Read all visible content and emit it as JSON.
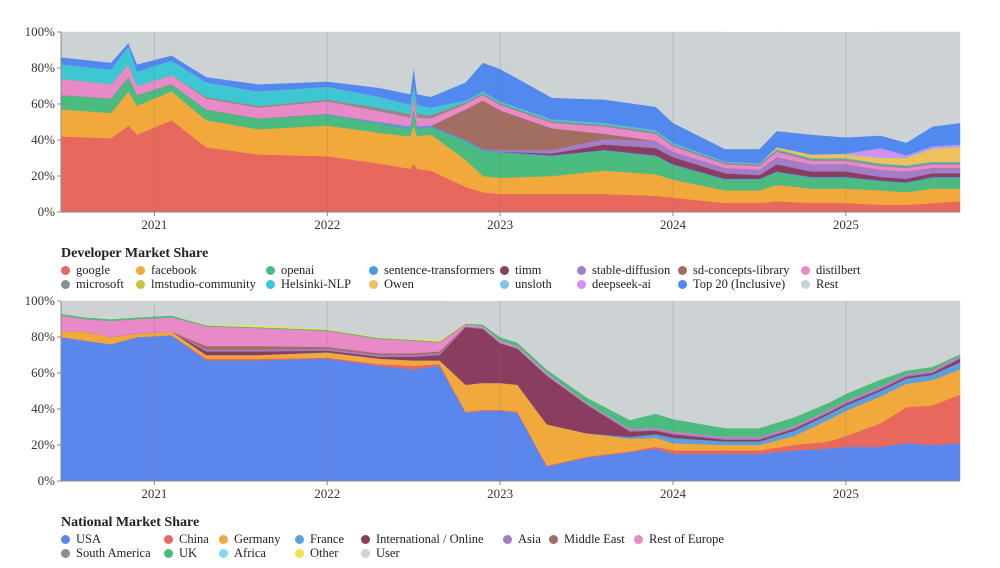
{
  "chart_data": [
    {
      "type": "area",
      "stacked": true,
      "title": "Developer Market Share",
      "xlabel": "",
      "ylabel": "",
      "xlim": [
        2020.46,
        2025.66
      ],
      "ylim": [
        0,
        100
      ],
      "y_ticks": [
        "0%",
        "20%",
        "40%",
        "60%",
        "80%",
        "100%"
      ],
      "y_tick_values": [
        0,
        20,
        40,
        60,
        80,
        100
      ],
      "x_ticks": [
        "2021",
        "2022",
        "2023",
        "2024",
        "2025"
      ],
      "x_tick_values": [
        2021,
        2022,
        2023,
        2024,
        2025
      ],
      "grid": true,
      "legend_position": "bottom-left",
      "x": [
        2020.46,
        2020.75,
        2020.85,
        2020.9,
        2021.1,
        2021.3,
        2021.6,
        2022.0,
        2022.3,
        2022.48,
        2022.5,
        2022.52,
        2022.6,
        2022.8,
        2022.9,
        2023.0,
        2023.3,
        2023.6,
        2023.9,
        2024.0,
        2024.3,
        2024.5,
        2024.6,
        2024.8,
        2025.0,
        2025.2,
        2025.35,
        2025.5,
        2025.66
      ],
      "series": [
        {
          "name": "google",
          "color": "#e8685e",
          "values": [
            42,
            41,
            48,
            43,
            51,
            36,
            32,
            31,
            27,
            24,
            27,
            24,
            23,
            14,
            11,
            10,
            10,
            10,
            9,
            8,
            5,
            5,
            6,
            5,
            5,
            4,
            4,
            5,
            6
          ]
        },
        {
          "name": "facebook",
          "color": "#f2a93b",
          "values": [
            15,
            14,
            19,
            16,
            16,
            15,
            14,
            17,
            17,
            18,
            21,
            18,
            20,
            15,
            9,
            9,
            10,
            13,
            12,
            10,
            7,
            7,
            9,
            8,
            8,
            8,
            7,
            8,
            7
          ]
        },
        {
          "name": "openai",
          "color": "#4cbb7f",
          "values": [
            8,
            8,
            8,
            6,
            4,
            6,
            6,
            6,
            5,
            4,
            8,
            4,
            4,
            10,
            14,
            14,
            11,
            11,
            10,
            8,
            6,
            6,
            7,
            6,
            6,
            5,
            5,
            6,
            6
          ]
        },
        {
          "name": "sentence-transformers",
          "color": "#4a9de0",
          "values": [
            0,
            0,
            0,
            0,
            0,
            0,
            0,
            0.5,
            1,
            1.5,
            1.5,
            1.5,
            1,
            1,
            1,
            0.5,
            0.5,
            0.5,
            0.5,
            0.5,
            0.5,
            0.5,
            0.5,
            0.5,
            0.5,
            0.5,
            0.5,
            0.5,
            0.5
          ]
        },
        {
          "name": "timm",
          "color": "#8b3d5f",
          "values": [
            0,
            0,
            0,
            0,
            0,
            0,
            0,
            0,
            0,
            0,
            0,
            0,
            0,
            0,
            0,
            0,
            1,
            3,
            4,
            4,
            3,
            2,
            4,
            3,
            3,
            2,
            2,
            2,
            2
          ]
        },
        {
          "name": "stable-diffusion",
          "color": "#a47dc8",
          "values": [
            0,
            0,
            0,
            0,
            0,
            0,
            0,
            0,
            0,
            0,
            0,
            0,
            0,
            0,
            0,
            1,
            2,
            3,
            4,
            3,
            3,
            3,
            4,
            4,
            4,
            4,
            4,
            3,
            3
          ]
        },
        {
          "name": "sd-concepts-library",
          "color": "#a36e62",
          "values": [
            0,
            0,
            0,
            0,
            0,
            0,
            0,
            0,
            0,
            0,
            0,
            0,
            0,
            17,
            27,
            22,
            12,
            3,
            0,
            0,
            0,
            0,
            0,
            0,
            0,
            0,
            0,
            0,
            0
          ]
        },
        {
          "name": "distilbert",
          "color": "#e98ac8",
          "values": [
            9,
            8,
            7,
            5,
            5,
            6,
            6,
            7,
            6,
            5,
            5,
            5,
            4,
            3,
            3,
            3,
            3,
            4,
            4,
            3,
            2,
            2,
            3,
            2,
            2,
            2,
            2,
            2,
            2
          ]
        },
        {
          "name": "microsoft",
          "color": "#8c8c8c",
          "values": [
            0,
            0,
            0,
            0,
            0,
            1,
            1,
            1,
            2,
            2,
            2,
            2,
            2,
            1,
            1,
            1,
            1,
            1,
            1,
            1,
            1,
            1,
            1,
            1,
            1,
            1,
            1,
            1,
            1
          ]
        },
        {
          "name": "lmstudio-community",
          "color": "#c6c440",
          "values": [
            0,
            0,
            0,
            0,
            0,
            0,
            0,
            0,
            0,
            0,
            0,
            0,
            0,
            0,
            0,
            0,
            0,
            0,
            0,
            0,
            0,
            0,
            0,
            0,
            0,
            0,
            0,
            0,
            0
          ]
        },
        {
          "name": "Helsinki-NLP",
          "color": "#3cc7d2",
          "values": [
            8,
            8,
            10,
            8,
            8,
            8,
            8,
            7,
            6,
            5,
            6,
            5,
            4,
            1,
            1,
            1,
            1,
            1,
            1,
            1,
            0.5,
            0.5,
            0.5,
            0.5,
            0.5,
            0.5,
            0.5,
            0.5,
            0.5
          ]
        },
        {
          "name": "Owen",
          "color": "#f0c05a",
          "values": [
            0,
            0,
            0,
            0,
            0,
            0,
            0,
            0,
            0,
            0,
            0,
            0,
            0,
            0,
            0,
            0,
            0,
            0,
            0,
            0,
            0,
            0,
            1,
            2,
            2,
            3,
            4,
            7,
            8
          ]
        },
        {
          "name": "unsloth",
          "color": "#7ec4ea",
          "values": [
            0,
            0,
            0,
            0,
            0,
            0,
            0,
            0,
            0,
            0,
            0,
            0,
            0,
            0,
            0,
            0,
            0,
            0,
            0,
            0,
            0,
            0,
            0,
            0,
            0.5,
            0.5,
            0.5,
            0.5,
            0.5
          ]
        },
        {
          "name": "deepseek-ai",
          "color": "#d48ef0",
          "values": [
            0,
            0,
            0,
            0,
            0,
            0,
            0,
            0,
            0,
            0,
            0,
            0,
            0,
            0,
            0,
            0,
            0,
            0,
            0,
            0,
            0,
            0,
            0,
            0,
            0,
            5,
            1,
            1,
            1
          ]
        },
        {
          "name": "Top 20 (Inclusive)",
          "color": "#5189ef",
          "values": [
            4,
            4,
            2,
            4,
            3,
            3,
            4,
            3,
            5,
            6,
            10,
            6,
            6,
            10,
            16,
            18,
            12,
            13,
            13,
            11,
            7,
            8,
            9,
            11,
            9,
            7,
            7,
            11,
            12
          ]
        },
        {
          "name": "Rest",
          "color": "#cdd2d4",
          "values": [
            14,
            17,
            6,
            18,
            13,
            25,
            29,
            27.5,
            31,
            34.5,
            19.5,
            34.5,
            36,
            28,
            17,
            20.5,
            36.5,
            38.5,
            41.5,
            50.5,
            65,
            64,
            55,
            56.5,
            58,
            57.5,
            61.5,
            52.5,
            50.5
          ]
        }
      ]
    },
    {
      "type": "area",
      "stacked": true,
      "title": "National Market Share",
      "xlabel": "",
      "ylabel": "",
      "xlim": [
        2020.46,
        2025.66
      ],
      "ylim": [
        0,
        100
      ],
      "y_ticks": [
        "0%",
        "20%",
        "40%",
        "60%",
        "80%",
        "100%"
      ],
      "y_tick_values": [
        0,
        20,
        40,
        60,
        80,
        100
      ],
      "x_ticks": [
        "2021",
        "2022",
        "2023",
        "2024",
        "2025"
      ],
      "x_tick_values": [
        2021,
        2022,
        2023,
        2024,
        2025
      ],
      "grid": true,
      "legend_position": "bottom-left",
      "x": [
        2020.46,
        2020.6,
        2020.75,
        2020.9,
        2021.1,
        2021.3,
        2021.6,
        2022.0,
        2022.3,
        2022.5,
        2022.65,
        2022.8,
        2022.9,
        2023.0,
        2023.1,
        2023.27,
        2023.5,
        2023.75,
        2023.9,
        2024.0,
        2024.3,
        2024.5,
        2024.7,
        2024.9,
        2025.0,
        2025.2,
        2025.35,
        2025.5,
        2025.66
      ],
      "series": [
        {
          "name": "USA",
          "color": "#5b86ec",
          "values": [
            80,
            78,
            76,
            80,
            81,
            67,
            67,
            68,
            64,
            62,
            64,
            38,
            39,
            39,
            38,
            8,
            13,
            16,
            18,
            15,
            15,
            15,
            17,
            18,
            19,
            19,
            21,
            20,
            21
          ]
        },
        {
          "name": "China",
          "color": "#e8685e",
          "values": [
            0,
            0,
            0,
            0,
            0,
            1,
            1,
            0.5,
            1,
            2,
            1,
            0.5,
            0.5,
            0.5,
            0.5,
            0.5,
            0.5,
            0.5,
            1,
            2,
            2,
            2,
            3,
            4,
            6,
            13,
            20,
            22,
            27
          ]
        },
        {
          "name": "Germany",
          "color": "#f2a93b",
          "values": [
            3,
            5,
            4,
            2,
            2,
            2,
            2,
            3,
            3,
            3,
            2,
            15,
            15,
            15,
            15,
            23,
            13,
            7,
            5,
            4,
            3,
            3,
            5,
            12,
            14,
            15,
            13,
            14,
            14
          ]
        },
        {
          "name": "France",
          "color": "#5aa0dc",
          "values": [
            0,
            0,
            0,
            0,
            0,
            0,
            0,
            0,
            0,
            0,
            0,
            0,
            0,
            0,
            0,
            0,
            0,
            1,
            2,
            3,
            2,
            2,
            3,
            3,
            3,
            3,
            3,
            3,
            4
          ]
        },
        {
          "name": "International / Online",
          "color": "#8b3d5f",
          "values": [
            0,
            0,
            0,
            0,
            0,
            2,
            2,
            1,
            1,
            2,
            3,
            32,
            30,
            22,
            20,
            27,
            16,
            3,
            2,
            2,
            1,
            1,
            1,
            1,
            1,
            1,
            1,
            1,
            2
          ]
        },
        {
          "name": "Asia",
          "color": "#a47dc8",
          "values": [
            0,
            0,
            0,
            0,
            0,
            1,
            1,
            1,
            1,
            1,
            1,
            0.5,
            0.5,
            0.5,
            0.5,
            0.5,
            0.5,
            1,
            1,
            1,
            1,
            1,
            1,
            1,
            1,
            1,
            1,
            1,
            1
          ]
        },
        {
          "name": "Middle East",
          "color": "#a36e62",
          "values": [
            0,
            0,
            0,
            0,
            0,
            2,
            2,
            1,
            1,
            1,
            1,
            0,
            0,
            0,
            0,
            0,
            0,
            0,
            0,
            0,
            0,
            0,
            0,
            0,
            0,
            0,
            0,
            0,
            0
          ]
        },
        {
          "name": "Rest of Europe",
          "color": "#e98ac8",
          "values": [
            9,
            7,
            9,
            8,
            8,
            11,
            10,
            9,
            8,
            7,
            5,
            1,
            1,
            1,
            1,
            1,
            0.5,
            0.5,
            0.5,
            0.5,
            0.5,
            0.5,
            0.5,
            0.5,
            0.5,
            0.5,
            0.5,
            0.5,
            0.5
          ]
        },
        {
          "name": "South America",
          "color": "#8c8c8c",
          "values": [
            0,
            0,
            0,
            0,
            0,
            0,
            0,
            0,
            0,
            0,
            0,
            0,
            0,
            0,
            0,
            0,
            0,
            0,
            0,
            0,
            0,
            0,
            0,
            0,
            0,
            0,
            0,
            0,
            0
          ]
        },
        {
          "name": "UK",
          "color": "#4cbb7f",
          "values": [
            1,
            1,
            1,
            1,
            1,
            0.5,
            0.5,
            0.5,
            0.5,
            0.5,
            0.5,
            0.5,
            1,
            2,
            2,
            2,
            3,
            5,
            8,
            7,
            5,
            5,
            5,
            4,
            4,
            4,
            2,
            2,
            1
          ]
        },
        {
          "name": "Africa",
          "color": "#7fdaf0",
          "values": [
            0,
            0,
            0,
            0,
            0,
            0,
            0,
            0,
            0,
            0,
            0,
            0,
            0,
            0,
            0,
            0,
            0,
            0,
            0,
            0,
            0,
            0,
            0,
            0,
            0,
            0,
            0,
            0,
            0
          ]
        },
        {
          "name": "Other",
          "color": "#f4e150",
          "values": [
            0,
            0,
            0,
            0,
            0,
            0.5,
            1,
            0.5,
            0.5,
            0.5,
            1,
            0.5,
            0,
            0,
            0,
            0,
            0,
            0,
            0,
            0,
            0,
            0,
            0,
            0,
            0,
            0,
            0,
            0,
            0
          ]
        },
        {
          "name": "User",
          "color": "#cdd2d4",
          "values": [
            7,
            9,
            10,
            9,
            8,
            13,
            13.5,
            15.5,
            20,
            21,
            21.5,
            11.5,
            12.5,
            20,
            23,
            38,
            53.5,
            66,
            62.5,
            65.5,
            70.5,
            70.5,
            64.5,
            56.5,
            51.5,
            43.5,
            38.5,
            36.5,
            29.5
          ]
        }
      ]
    }
  ],
  "legends": {
    "developer": {
      "title": "Developer Market Share",
      "rows": [
        [
          "google",
          "facebook",
          "openai",
          "sentence-transformers",
          "timm",
          "stable-diffusion",
          "sd-concepts-library",
          "distilbert"
        ],
        [
          "microsoft",
          "lmstudio-community",
          "Helsinki-NLP",
          "Owen",
          "unsloth",
          "deepseek-ai",
          "Top 20 (Inclusive)",
          "Rest"
        ]
      ]
    },
    "national": {
      "title": "National Market Share",
      "rows": [
        [
          "USA",
          "China",
          "Germany",
          "France",
          "International / Online",
          "Asia",
          "Middle East",
          "Rest of Europe"
        ],
        [
          "South America",
          "UK",
          "Africa",
          "Other",
          "User"
        ]
      ]
    }
  }
}
